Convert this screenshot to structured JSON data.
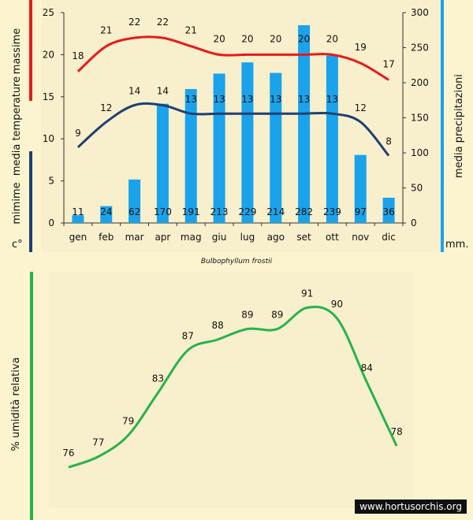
{
  "colors": {
    "max": "#e41c1c",
    "min": "#1f3f73",
    "precip": "#1aa3ea",
    "humidity": "#27b34a",
    "text": "#111111",
    "bg": "#fbf4cf",
    "panel": "#f8efcc"
  },
  "chart_data": [
    {
      "type": "bar",
      "categories": [
        "gen",
        "feb",
        "mar",
        "apr",
        "mag",
        "giu",
        "lug",
        "ago",
        "set",
        "ott",
        "nov",
        "dic"
      ],
      "series": [
        {
          "name": "massime",
          "kind": "line",
          "axis": "left",
          "values": [
            18,
            21,
            22,
            22,
            21,
            20,
            20,
            20,
            20,
            20,
            19,
            17
          ]
        },
        {
          "name": "mimime",
          "kind": "line",
          "axis": "left",
          "values": [
            9,
            12,
            14,
            14,
            13,
            13,
            13,
            13,
            13,
            13,
            12,
            8
          ]
        },
        {
          "name": "media precipitazioni",
          "kind": "bar",
          "axis": "right",
          "values": [
            11,
            24,
            62,
            170,
            191,
            213,
            229,
            214,
            282,
            239,
            97,
            36
          ]
        }
      ],
      "left_ylim": [
        0,
        25
      ],
      "left_ticks": [
        0,
        5,
        10,
        15,
        20,
        25
      ],
      "right_ylim": [
        0,
        300
      ],
      "right_ticks": [
        0,
        50,
        100,
        150,
        200,
        250,
        300
      ],
      "left_axis_labels": {
        "max": "massime",
        "temp": "media temperature",
        "min": "mimime",
        "unit": "c°"
      },
      "right_axis_labels": {
        "title": "media precipitazioni",
        "unit": "mm."
      },
      "grid": false
    },
    {
      "type": "line",
      "categories": [
        "gen",
        "feb",
        "mar",
        "apr",
        "mag",
        "giu",
        "lug",
        "ago",
        "set",
        "ott",
        "nov",
        "dic"
      ],
      "series": [
        {
          "name": "% umidità relativa",
          "values": [
            76,
            77,
            79,
            83,
            87,
            88,
            89,
            89,
            91,
            90,
            84,
            78
          ]
        }
      ],
      "ylabel": "% umidità relativa"
    }
  ],
  "caption": "Bulbophyllum  frostii",
  "watermark": "www.hortusorchis.org"
}
